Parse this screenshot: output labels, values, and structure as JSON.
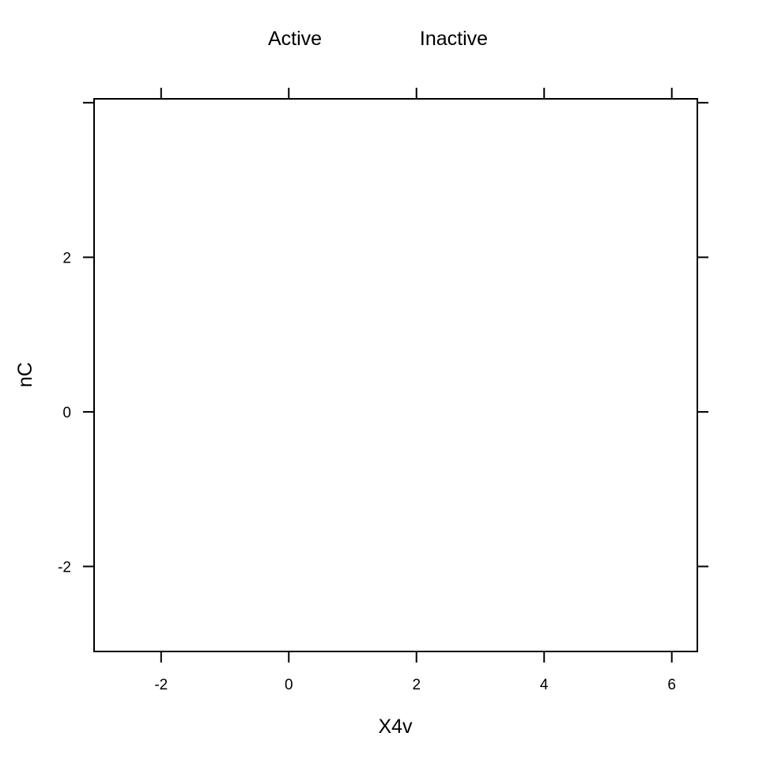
{
  "chart_data": {
    "type": "scatter",
    "title": "",
    "xlabel": "X4v",
    "ylabel": "nC",
    "xlim": [
      -3.05,
      6.4
    ],
    "ylim": [
      -3.1,
      4.05
    ],
    "x_ticks": [
      -2,
      0,
      2,
      4,
      6
    ],
    "x_tick_labels": [
      "-2",
      "0",
      "2",
      "4",
      "6"
    ],
    "y_ticks": [
      -2,
      0,
      2
    ],
    "y_tick_labels": [
      "-2",
      "0",
      "2"
    ],
    "y_extra_tick_marks": [
      4
    ],
    "grid": false,
    "legend": {
      "placement": "top",
      "entries": [
        "Active",
        "Inactive"
      ]
    },
    "series": [
      {
        "name": "Active",
        "x": [],
        "y": []
      },
      {
        "name": "Inactive",
        "x": [],
        "y": []
      }
    ]
  }
}
